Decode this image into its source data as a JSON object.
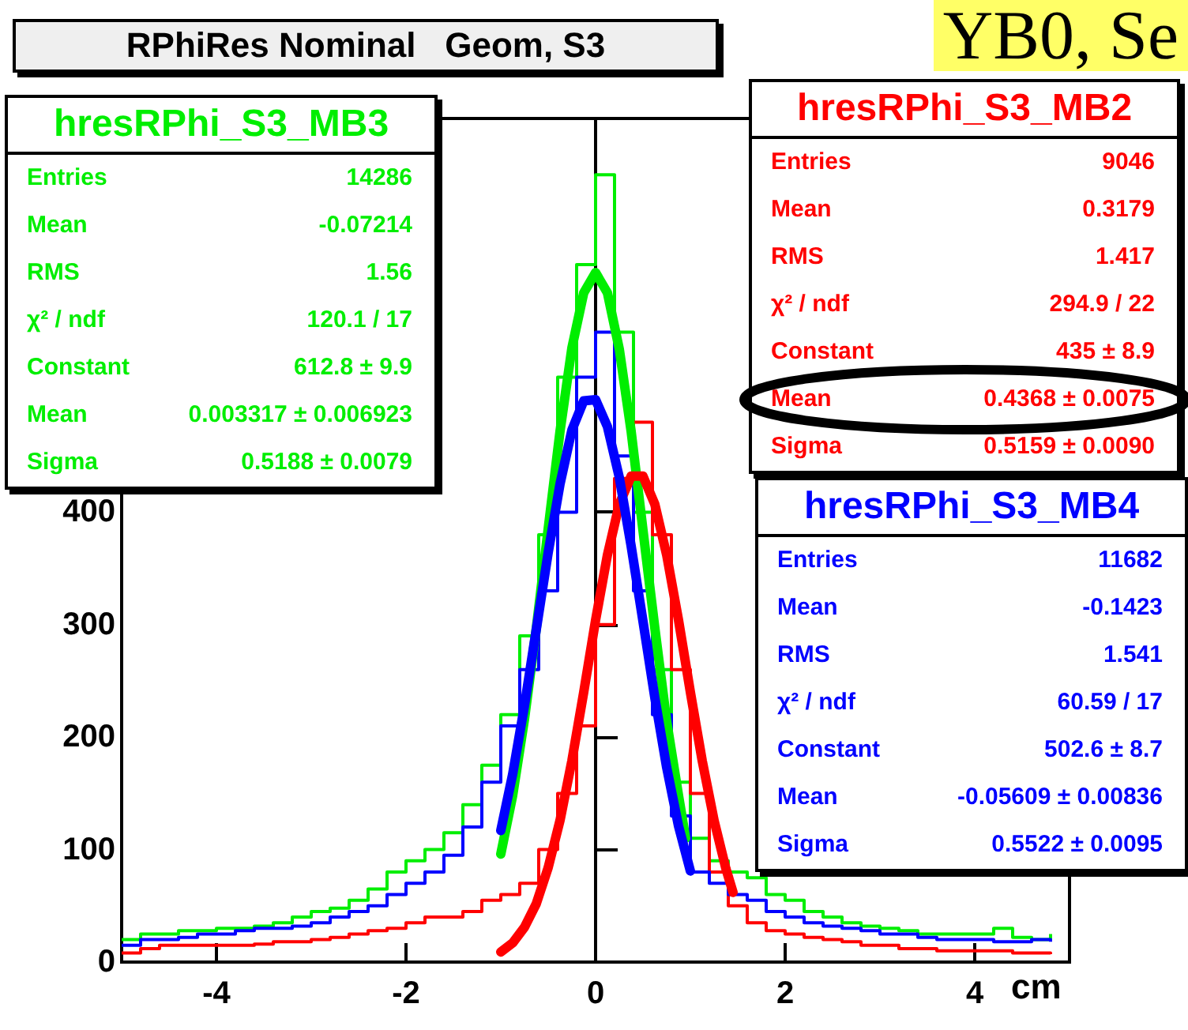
{
  "chart_data": {
    "type": "step",
    "title": "RPhiRes Nominal   Geom, S3",
    "xlabel": "cm",
    "annotations": [
      "YB0, Se",
      "Entries\t14286",
      "Mean\t-0.07214",
      "RMS\t1.56",
      "χ² / ndf\t120.1 / 17",
      "Constant\t612.8 ± 9.9",
      "Mean\t0.003317 ± 0.006923",
      "Sigma\t0.5188 ± 0.0079",
      "Entries\t9046",
      "Mean\t0.3179",
      "RMS\t1.417",
      "χ² / ndf\t294.9 / 22",
      "Constant\t435 ± 8.9",
      "Mean\t0.4368 ± 0.0075",
      "Sigma\t0.5159 ± 0.0090",
      "Entries\t11682",
      "Mean\t-0.1423",
      "RMS\t1.541",
      "χ² / ndf\t60.59 / 17",
      "Constant\t502.6 ± 8.7",
      "Mean\t-0.05609 ± 0.00836",
      "Sigma\t0.5522 ± 0.0095"
    ],
    "x": [
      -5,
      -4.8,
      -4.6,
      -4.4,
      -4.2,
      -4,
      -3.8,
      -3.6,
      -3.4,
      -3.2,
      -3,
      -2.8,
      -2.6,
      -2.4,
      -2.2,
      -2,
      -1.8,
      -1.6,
      -1.4,
      -1.2,
      -1,
      -0.8,
      -0.6,
      -0.4,
      -0.2,
      0,
      0.2,
      0.4,
      0.6,
      0.8,
      1,
      1.2,
      1.4,
      1.6,
      1.8,
      2,
      2.2,
      2.4,
      2.6,
      2.8,
      3,
      3.2,
      3.4,
      3.6,
      3.8,
      4,
      4.2,
      4.4,
      4.6,
      4.8
    ],
    "series": [
      {
        "name": "hresRPhi_S3_MB3",
        "color": "#00ee00",
        "values": [
          20,
          25,
          25,
          28,
          28,
          30,
          30,
          32,
          35,
          40,
          45,
          48,
          55,
          65,
          80,
          90,
          100,
          115,
          140,
          175,
          220,
          290,
          380,
          520,
          620,
          700,
          560,
          400,
          260,
          160,
          110,
          90,
          80,
          75,
          60,
          55,
          45,
          40,
          35,
          32,
          30,
          28,
          25,
          25,
          25,
          25,
          30,
          22,
          20,
          25
        ]
      },
      {
        "name": "hresRPhi_S3_MB2",
        "color": "#ff0000",
        "values": [
          8,
          12,
          15,
          15,
          15,
          15,
          15,
          16,
          18,
          18,
          20,
          22,
          25,
          28,
          30,
          35,
          40,
          40,
          45,
          55,
          60,
          70,
          100,
          150,
          210,
          300,
          430,
          480,
          380,
          260,
          150,
          80,
          50,
          35,
          28,
          25,
          22,
          20,
          18,
          15,
          15,
          12,
          12,
          10,
          10,
          10,
          10,
          8,
          8,
          7
        ]
      },
      {
        "name": "hresRPhi_S3_MB4",
        "color": "#0000ff",
        "values": [
          15,
          20,
          20,
          22,
          25,
          25,
          28,
          30,
          30,
          32,
          35,
          40,
          45,
          50,
          60,
          70,
          80,
          95,
          120,
          160,
          210,
          260,
          330,
          400,
          520,
          560,
          450,
          330,
          220,
          130,
          80,
          70,
          60,
          55,
          45,
          40,
          35,
          32,
          30,
          28,
          25,
          25,
          22,
          20,
          20,
          20,
          18,
          18,
          20,
          18
        ]
      },
      {
        "type": "line",
        "color": "#00ee00",
        "x": [
          -1,
          -0.875,
          -0.75,
          -0.625,
          -0.5,
          -0.375,
          -0.25,
          -0.125,
          0,
          0.125,
          0.25,
          0.375,
          0.5,
          0.625,
          0.75,
          0.875,
          0.95
        ],
        "values": [
          96,
          148,
          216,
          297,
          385,
          472,
          546,
          595,
          613,
          595,
          545,
          472,
          384,
          297,
          214,
          148,
          110
        ]
      },
      {
        "type": "line",
        "color": "#ff0000",
        "x": [
          -1,
          -0.875,
          -0.75,
          -0.625,
          -0.5,
          -0.375,
          -0.25,
          -0.125,
          0,
          0.125,
          0.25,
          0.375,
          0.5,
          0.625,
          0.75,
          0.875,
          1,
          1.125,
          1.25,
          1.375,
          1.45
        ],
        "values": [
          9,
          17,
          31,
          52,
          84,
          126,
          179,
          240,
          304,
          362,
          407,
          432,
          432,
          407,
          362,
          304,
          240,
          179,
          126,
          83,
          62
        ]
      },
      {
        "type": "line",
        "color": "#0000ff",
        "x": [
          -1,
          -0.875,
          -0.75,
          -0.625,
          -0.5,
          -0.375,
          -0.25,
          -0.125,
          0,
          0.125,
          0.25,
          0.375,
          0.5,
          0.625,
          0.75,
          0.875,
          1
        ],
        "values": [
          117,
          167,
          228,
          296,
          364,
          425,
          473,
          499,
          500,
          476,
          431,
          370,
          303,
          235,
          173,
          121,
          81
        ]
      }
    ],
    "xlim": [
      -5,
      5
    ],
    "ylim": [
      0,
      750
    ],
    "xticks": [
      -4,
      -2,
      0,
      2,
      4
    ],
    "yticks": [
      0,
      100,
      200,
      300,
      400
    ]
  }
}
